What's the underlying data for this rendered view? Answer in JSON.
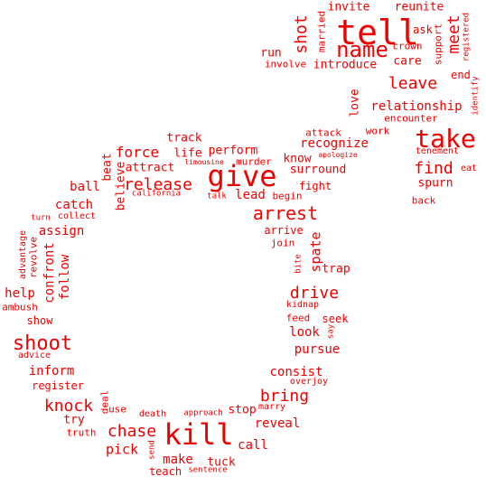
{
  "colors": {
    "text": "#ee0000",
    "background": "#ffffff"
  },
  "words": [
    {
      "text": "tell"
    },
    {
      "text": "give"
    },
    {
      "text": "kill"
    },
    {
      "text": "take"
    },
    {
      "text": "name"
    },
    {
      "text": "shoot"
    },
    {
      "text": "arrest"
    },
    {
      "text": "release"
    },
    {
      "text": "chase"
    },
    {
      "text": "leave"
    },
    {
      "text": "find"
    },
    {
      "text": "meet"
    },
    {
      "text": "shot"
    },
    {
      "text": "bring"
    },
    {
      "text": "drive"
    },
    {
      "text": "knock"
    },
    {
      "text": "force"
    },
    {
      "text": "relationship"
    },
    {
      "text": "recognize"
    },
    {
      "text": "invite"
    },
    {
      "text": "reunite"
    },
    {
      "text": "married"
    },
    {
      "text": "crown"
    },
    {
      "text": "ask"
    },
    {
      "text": "support"
    },
    {
      "text": "registered"
    },
    {
      "text": "run"
    },
    {
      "text": "involve"
    },
    {
      "text": "introduce"
    },
    {
      "text": "care"
    },
    {
      "text": "end"
    },
    {
      "text": "identify"
    },
    {
      "text": "love"
    },
    {
      "text": "work"
    },
    {
      "text": "encounter"
    },
    {
      "text": "attack"
    },
    {
      "text": "apologize"
    },
    {
      "text": "tenement"
    },
    {
      "text": "eat"
    },
    {
      "text": "spurn"
    },
    {
      "text": "back"
    },
    {
      "text": "track"
    },
    {
      "text": "life"
    },
    {
      "text": "perform"
    },
    {
      "text": "know"
    },
    {
      "text": "beat"
    },
    {
      "text": "limousine"
    },
    {
      "text": "murder"
    },
    {
      "text": "attract"
    },
    {
      "text": "surround"
    },
    {
      "text": "believe"
    },
    {
      "text": "ball"
    },
    {
      "text": "fight"
    },
    {
      "text": "california"
    },
    {
      "text": "talk"
    },
    {
      "text": "lead"
    },
    {
      "text": "begin"
    },
    {
      "text": "catch"
    },
    {
      "text": "turn"
    },
    {
      "text": "collect"
    },
    {
      "text": "assign"
    },
    {
      "text": "arrive"
    },
    {
      "text": "join"
    },
    {
      "text": "spate"
    },
    {
      "text": "advantage"
    },
    {
      "text": "revolve"
    },
    {
      "text": "confront"
    },
    {
      "text": "follow"
    },
    {
      "text": "bite"
    },
    {
      "text": "trap"
    },
    {
      "text": "help"
    },
    {
      "text": "ambush"
    },
    {
      "text": "kidnap"
    },
    {
      "text": "feed"
    },
    {
      "text": "seek"
    },
    {
      "text": "show"
    },
    {
      "text": "say"
    },
    {
      "text": "look"
    },
    {
      "text": "pursue"
    },
    {
      "text": "advice"
    },
    {
      "text": "inform"
    },
    {
      "text": "register"
    },
    {
      "text": "consist"
    },
    {
      "text": "overjoy"
    },
    {
      "text": "deal"
    },
    {
      "text": "try"
    },
    {
      "text": "use"
    },
    {
      "text": "death"
    },
    {
      "text": "approach"
    },
    {
      "text": "stop"
    },
    {
      "text": "marry"
    },
    {
      "text": "reveal"
    },
    {
      "text": "truth"
    },
    {
      "text": "pick"
    },
    {
      "text": "send"
    },
    {
      "text": "call"
    },
    {
      "text": "make"
    },
    {
      "text": "tuck"
    },
    {
      "text": "teach"
    },
    {
      "text": "sentence"
    }
  ]
}
